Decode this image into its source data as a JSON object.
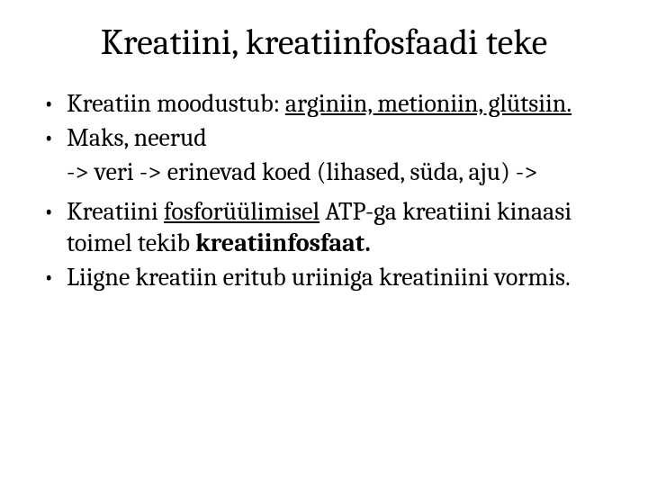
{
  "slide": {
    "title": "Kreatiini, kreatiinfosfaadi teke",
    "b1_lead": "Kreatiin moodustub: ",
    "b1_u": "arginiin, metioniin, glütsiin.",
    "b2": "Maks, neerud",
    "b2_sub": "-> veri -> erinevad koed (lihased, süda, aju) ->",
    "b3_p1": "Kreatiini ",
    "b3_u": "fosforüülimisel",
    "b3_p2": " ATP-ga kreatiini kinaasi toimel tekib ",
    "b3_b": "kreatiinfosfaat.",
    "b4": "Liigne kreatiin eritub uriiniga kreatiniini vormis."
  }
}
